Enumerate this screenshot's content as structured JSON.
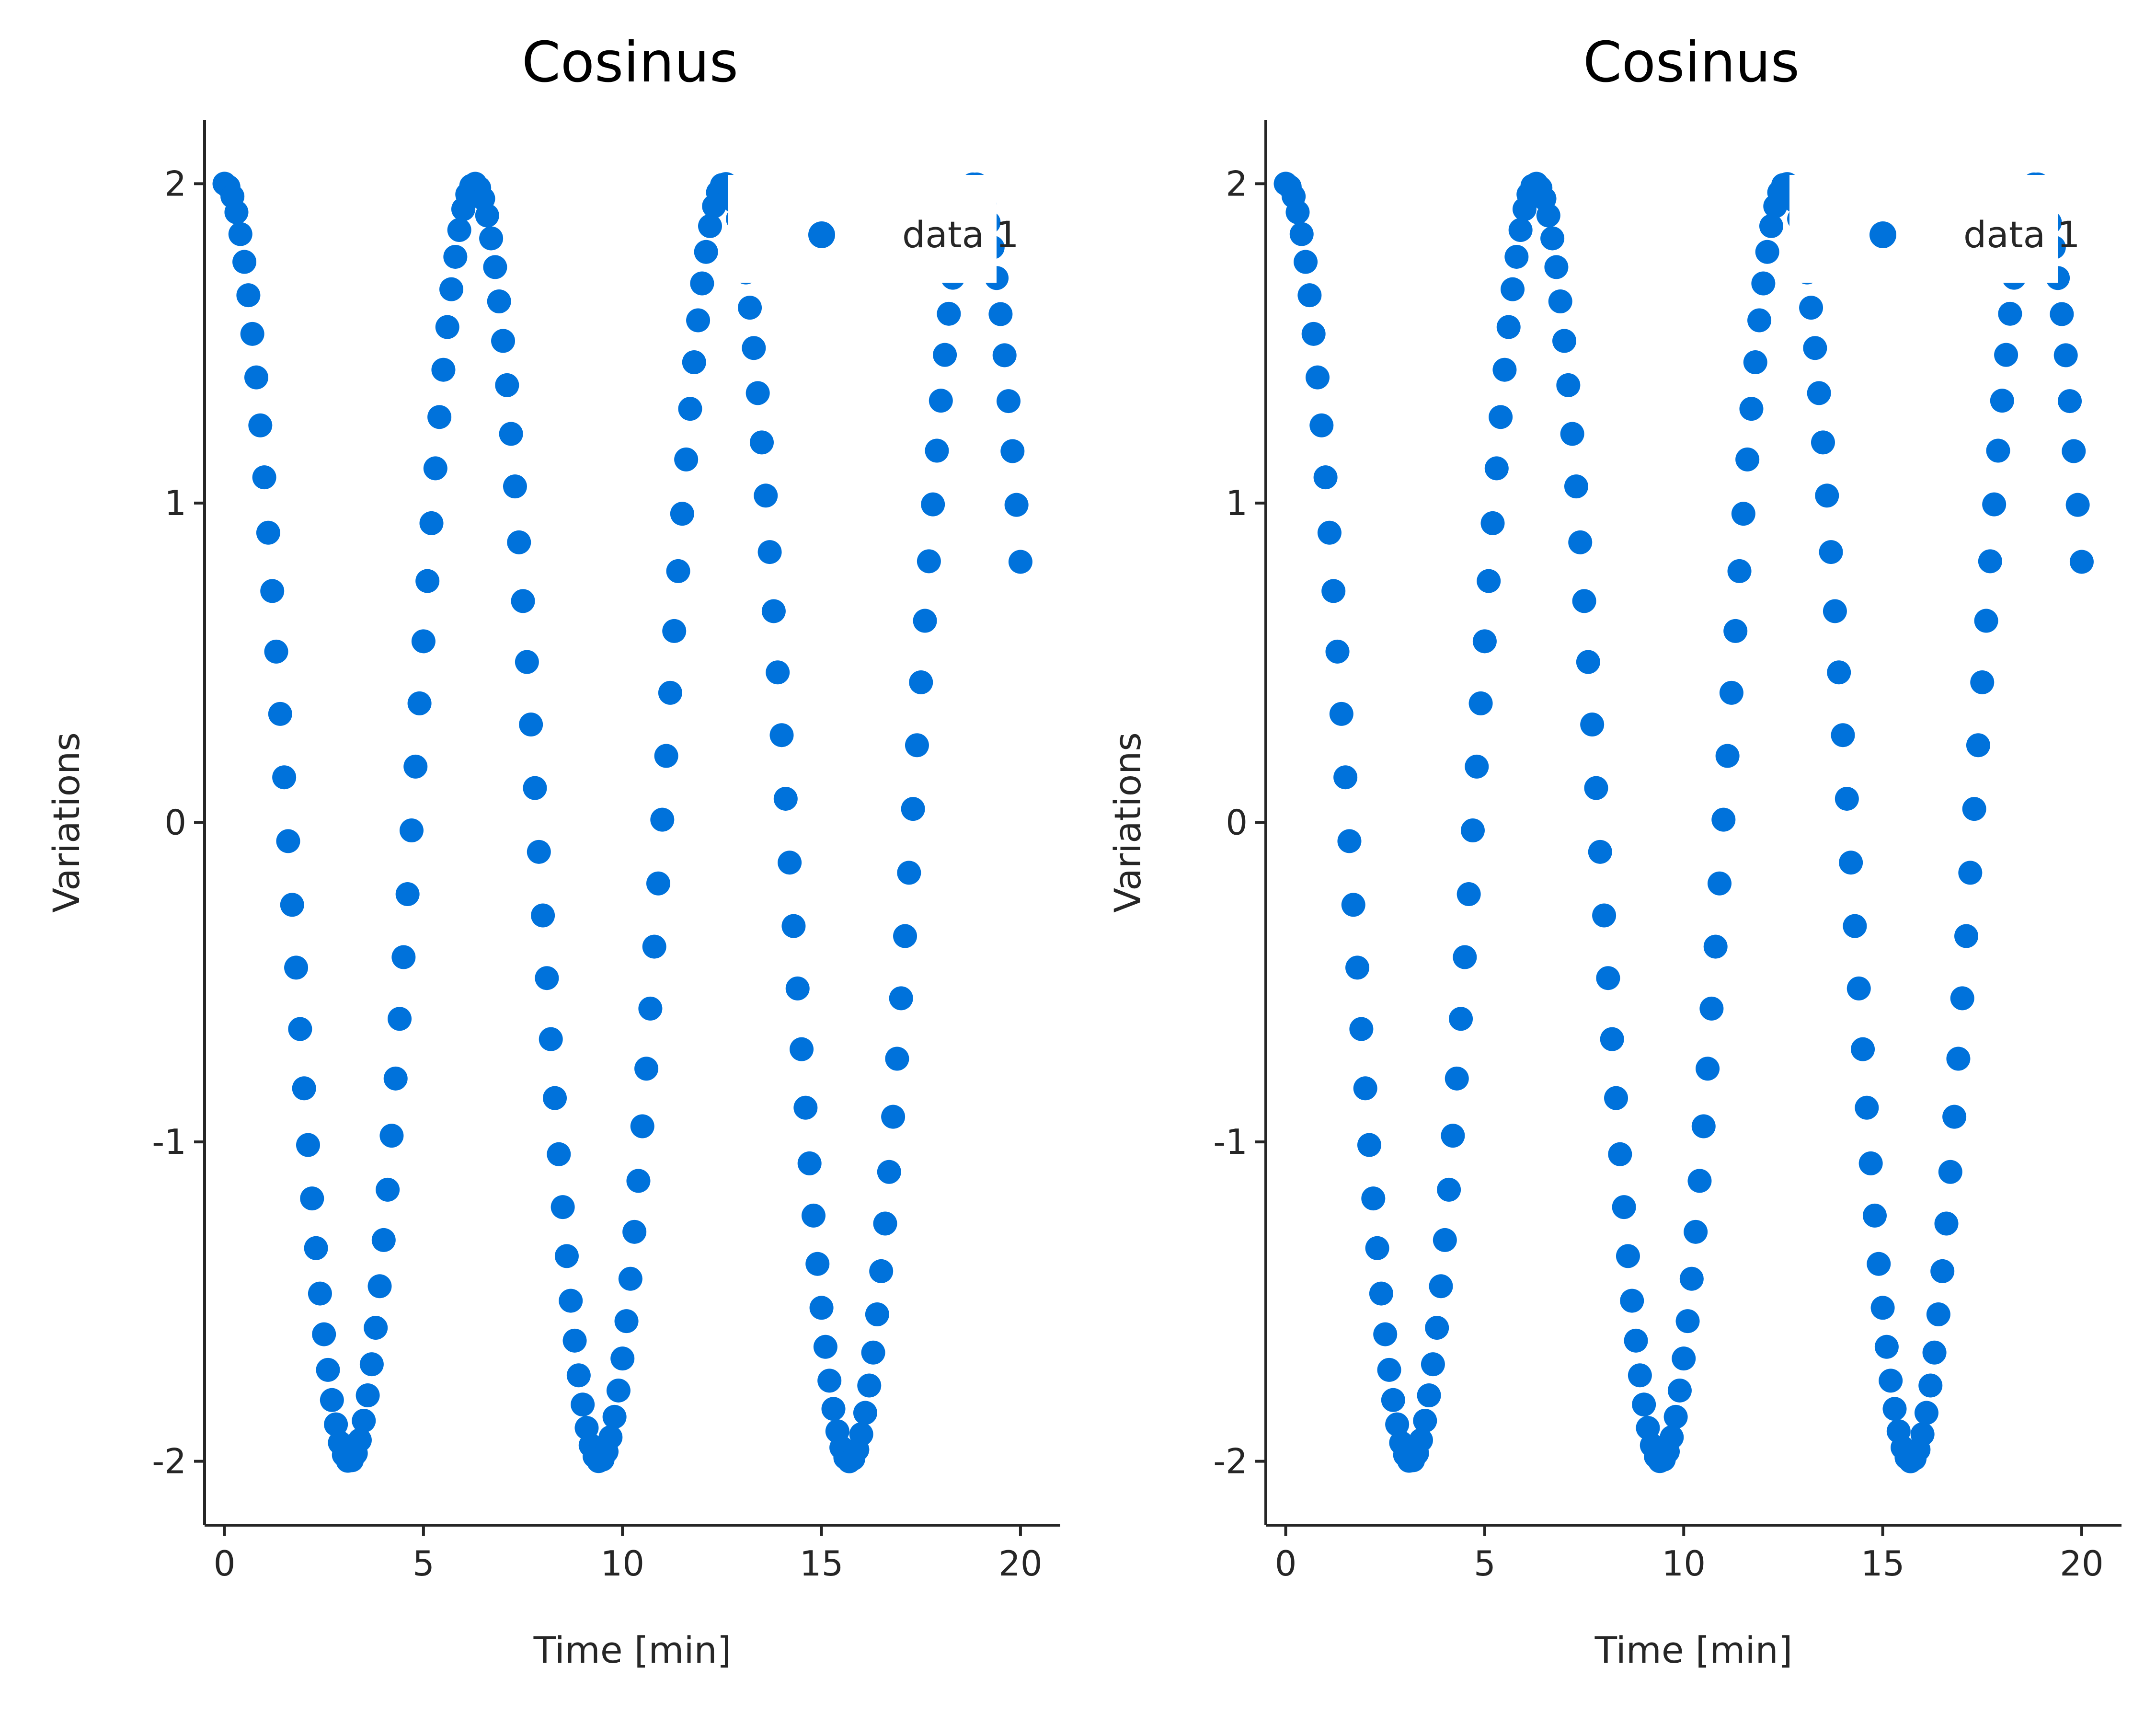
{
  "chart_data": [
    {
      "type": "scatter",
      "title": "Cosinus",
      "xlabel": "Time [min]",
      "ylabel": "Variations",
      "xlim": [
        -0.5,
        21
      ],
      "ylim": [
        -2.2,
        2.2
      ],
      "xticks": [
        0,
        5,
        10,
        15,
        20
      ],
      "xtick_labels": [
        "0",
        "5",
        "10",
        "15",
        "20"
      ],
      "yticks": [
        -2,
        -1,
        0,
        1,
        2
      ],
      "ytick_labels": [
        "-2",
        "-1",
        "0",
        "1",
        "2"
      ],
      "grid": false,
      "legend_position": "top-right",
      "series": [
        {
          "name": "data 1",
          "color": "#0072DB",
          "function": "2*cos(x)",
          "x_start": 0,
          "x_end": 20,
          "x_step": 0.1
        }
      ]
    },
    {
      "type": "scatter",
      "title": "Cosinus",
      "xlabel": "Time [min]",
      "ylabel": "Variations",
      "xlim": [
        -0.5,
        21
      ],
      "ylim": [
        -2.2,
        2.2
      ],
      "xticks": [
        0,
        5,
        10,
        15,
        20
      ],
      "xtick_labels": [
        "0",
        "5",
        "10",
        "15",
        "20"
      ],
      "yticks": [
        -2,
        -1,
        0,
        1,
        2
      ],
      "ytick_labels": [
        "-2",
        "-1",
        "0",
        "1",
        "2"
      ],
      "grid": false,
      "legend_position": "top-right",
      "series": [
        {
          "name": "data 1",
          "color": "#0072DB",
          "function": "2*cos(x)",
          "x_start": 0,
          "x_end": 20,
          "x_step": 0.1
        }
      ]
    }
  ]
}
